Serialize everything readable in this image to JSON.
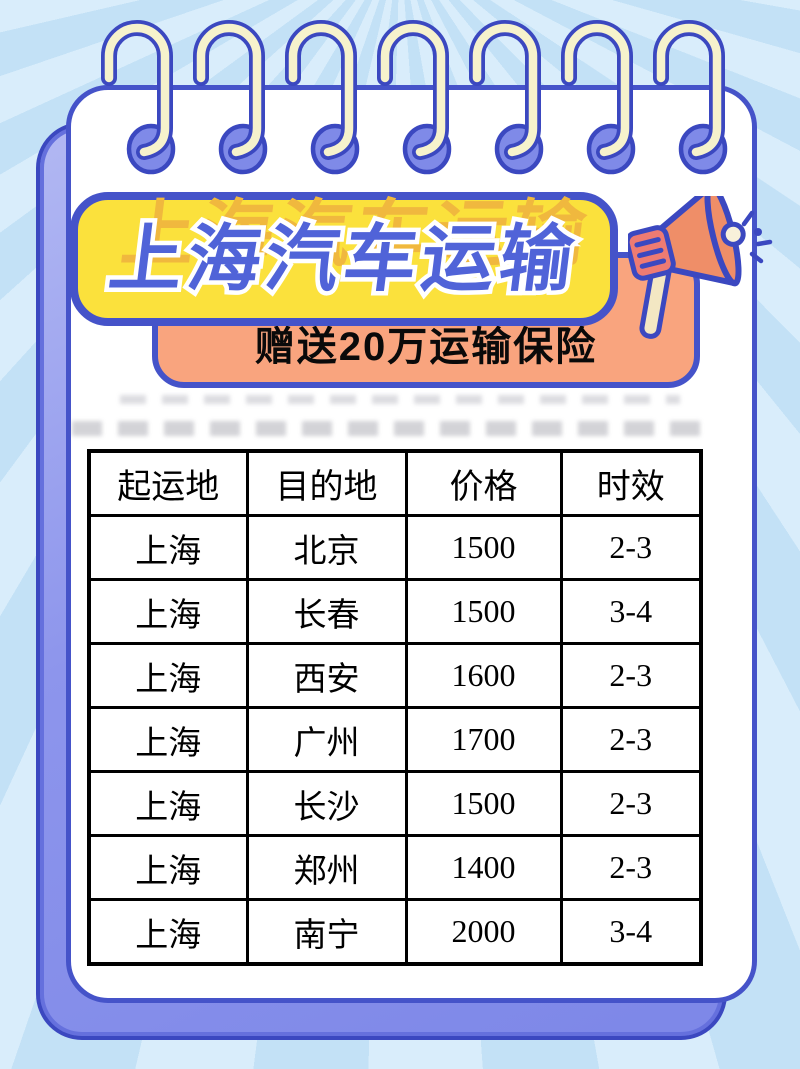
{
  "poster": {
    "title": "上海汽车运输",
    "subtitle": "赠送20万运输保险"
  },
  "rate_table": {
    "headers": [
      "起运地",
      "目的地",
      "价格",
      "时效"
    ],
    "rows": [
      [
        "上海",
        "北京",
        "1500",
        "2-3"
      ],
      [
        "上海",
        "长春",
        "1500",
        "3-4"
      ],
      [
        "上海",
        "西安",
        "1600",
        "2-3"
      ],
      [
        "上海",
        "广州",
        "1700",
        "2-3"
      ],
      [
        "上海",
        "长沙",
        "1500",
        "2-3"
      ],
      [
        "上海",
        "郑州",
        "1400",
        "2-3"
      ],
      [
        "上海",
        "南宁",
        "2000",
        "3-4"
      ]
    ]
  },
  "icons": {
    "megaphone": "megaphone-icon",
    "spiral_ring": "spiral-ring-icon"
  },
  "palette": {
    "background_light": "#d9edfb",
    "background_ray": "#c3e1f6",
    "card_white": "#ffffff",
    "card_border_blue": "#4553c9",
    "shadow_card_purple": "#8d95ec",
    "banner_yellow": "#fbe13c",
    "banner_orange": "#f9a47e",
    "title_blue": "#5063d8",
    "title_ghost_mustard": "#f0b83e",
    "ring_cream": "#f6f2cc",
    "ring_hole_purple": "#7f8ae8",
    "table_border_black": "#000000",
    "megaphone_orange": "#ef8e68",
    "megaphone_grip_pink": "#ee7b72",
    "megaphone_handle_cream": "#f3e7c3"
  }
}
